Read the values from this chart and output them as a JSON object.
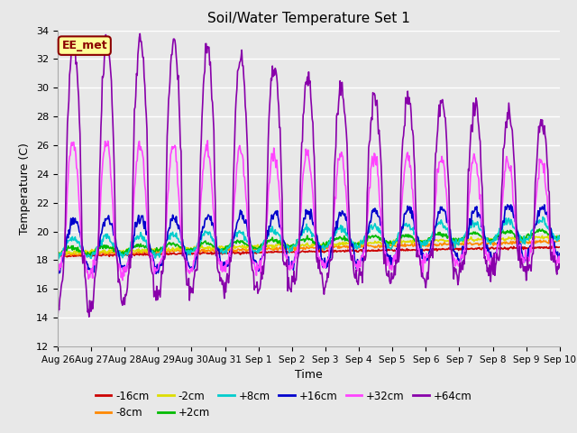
{
  "title": "Soil/Water Temperature Set 1",
  "xlabel": "Time",
  "ylabel": "Temperature (C)",
  "ylim": [
    12,
    34
  ],
  "yticks": [
    12,
    14,
    16,
    18,
    20,
    22,
    24,
    26,
    28,
    30,
    32,
    34
  ],
  "bg_color": "#e8e8e8",
  "grid_color": "#ffffff",
  "series": [
    {
      "label": "-16cm",
      "color": "#cc0000",
      "lw": 1.2
    },
    {
      "label": "-8cm",
      "color": "#ff8800",
      "lw": 1.2
    },
    {
      "label": "-2cm",
      "color": "#dddd00",
      "lw": 1.2
    },
    {
      "label": "+2cm",
      "color": "#00bb00",
      "lw": 1.2
    },
    {
      "label": "+8cm",
      "color": "#00cccc",
      "lw": 1.2
    },
    {
      "label": "+16cm",
      "color": "#0000cc",
      "lw": 1.2
    },
    {
      "label": "+32cm",
      "color": "#ff44ff",
      "lw": 1.2
    },
    {
      "label": "+64cm",
      "color": "#8800aa",
      "lw": 1.2
    }
  ],
  "x_tick_labels": [
    "Aug 26",
    "Aug 27",
    "Aug 28",
    "Aug 29",
    "Aug 30",
    "Aug 31",
    "Sep 1",
    "Sep 2",
    "Sep 3",
    "Sep 4",
    "Sep 5",
    "Sep 6",
    "Sep 7",
    "Sep 8",
    "Sep 9",
    "Sep 10"
  ],
  "annotation": "EE_met",
  "num_days": 15,
  "pts_per_day": 48
}
